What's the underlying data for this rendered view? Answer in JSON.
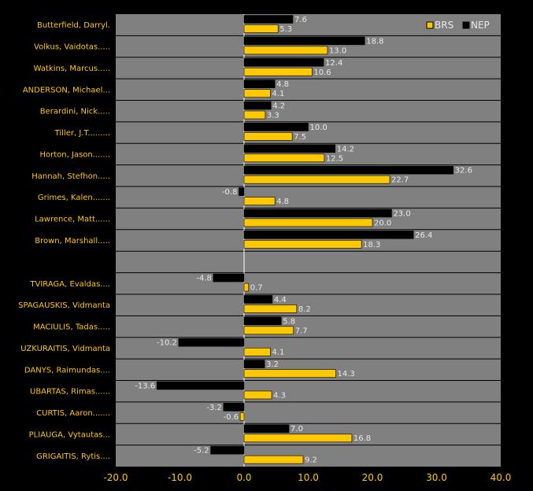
{
  "chart_data": {
    "type": "bar",
    "orientation": "horizontal",
    "xlim": [
      -20,
      40
    ],
    "x_ticks": [
      "-20.0",
      "-10.0",
      "0.0",
      "10.0",
      "20.0",
      "30.0",
      "40.0"
    ],
    "grid": true,
    "legend_position": "top-right",
    "categories": [
      "Butterfield, Darryl.",
      "Volkus, Vaidotas.....",
      "Watkins, Marcus.....",
      "ANDERSON, Michael...",
      "Berardini, Nick.....",
      "Tiller, J.T.........",
      "Horton, Jason.......",
      "Hannah, Stefhon.....",
      "Grimes, Kalen.......",
      "Lawrence, Matt......",
      "Brown, Marshall.....",
      "",
      "TVIRAGA, Evaldas....",
      "SPAGAUSKIS, Vidmanta",
      "MACIULIS, Tadas.....",
      "UZKURAITIS, Vidmanta",
      "DANYS, Raimundas....",
      "UBARTAS, Rimas......",
      "CURTIS, Aaron.......",
      "PLIAUGA, Vytautas...",
      "GRIGAITIS, Rytis...."
    ],
    "series": [
      {
        "name": "NEP",
        "color": "#000000",
        "values": [
          7.6,
          18.8,
          12.4,
          4.8,
          4.2,
          10.0,
          14.2,
          32.6,
          -0.8,
          23.0,
          26.4,
          null,
          -4.8,
          4.4,
          5.8,
          -10.2,
          3.2,
          -13.6,
          -3.2,
          7.0,
          -5.2
        ],
        "labels": [
          "7.6",
          "18.8",
          "12.4",
          "4.8",
          "4.2",
          "10.0",
          "14.2",
          "32.6",
          "-0.8",
          "23.0",
          "26.4",
          "",
          "-4.8",
          "4.4",
          "5.8",
          "-10.2",
          "3.2",
          "-13.6",
          "-3.2",
          "7.0",
          "-5.2"
        ]
      },
      {
        "name": "BRS",
        "color": "#FFC800",
        "values": [
          5.3,
          13.0,
          10.6,
          4.1,
          3.3,
          7.5,
          12.5,
          22.7,
          4.8,
          20.0,
          18.3,
          null,
          0.7,
          8.2,
          7.7,
          4.1,
          14.3,
          4.3,
          -0.6,
          16.8,
          9.2
        ],
        "labels": [
          "5.3",
          "13.0",
          "10.6",
          "4.1",
          "3.3",
          "7.5",
          "12.5",
          "22.7",
          "4.8",
          "20.0",
          "18.3",
          "",
          "0.7",
          "8.2",
          "7.7",
          "4.1",
          "14.3",
          "4.3",
          "-0.6",
          "16.8",
          "9.2"
        ]
      }
    ],
    "legend_order": [
      "BRS",
      "NEP"
    ]
  },
  "colors": {
    "page_background": "#000000",
    "plot_background": "#808080",
    "grid": "#000000",
    "zero_line": "#FFFFFF",
    "label_text": "#FFC800",
    "value_text": "#E8E8E8"
  }
}
